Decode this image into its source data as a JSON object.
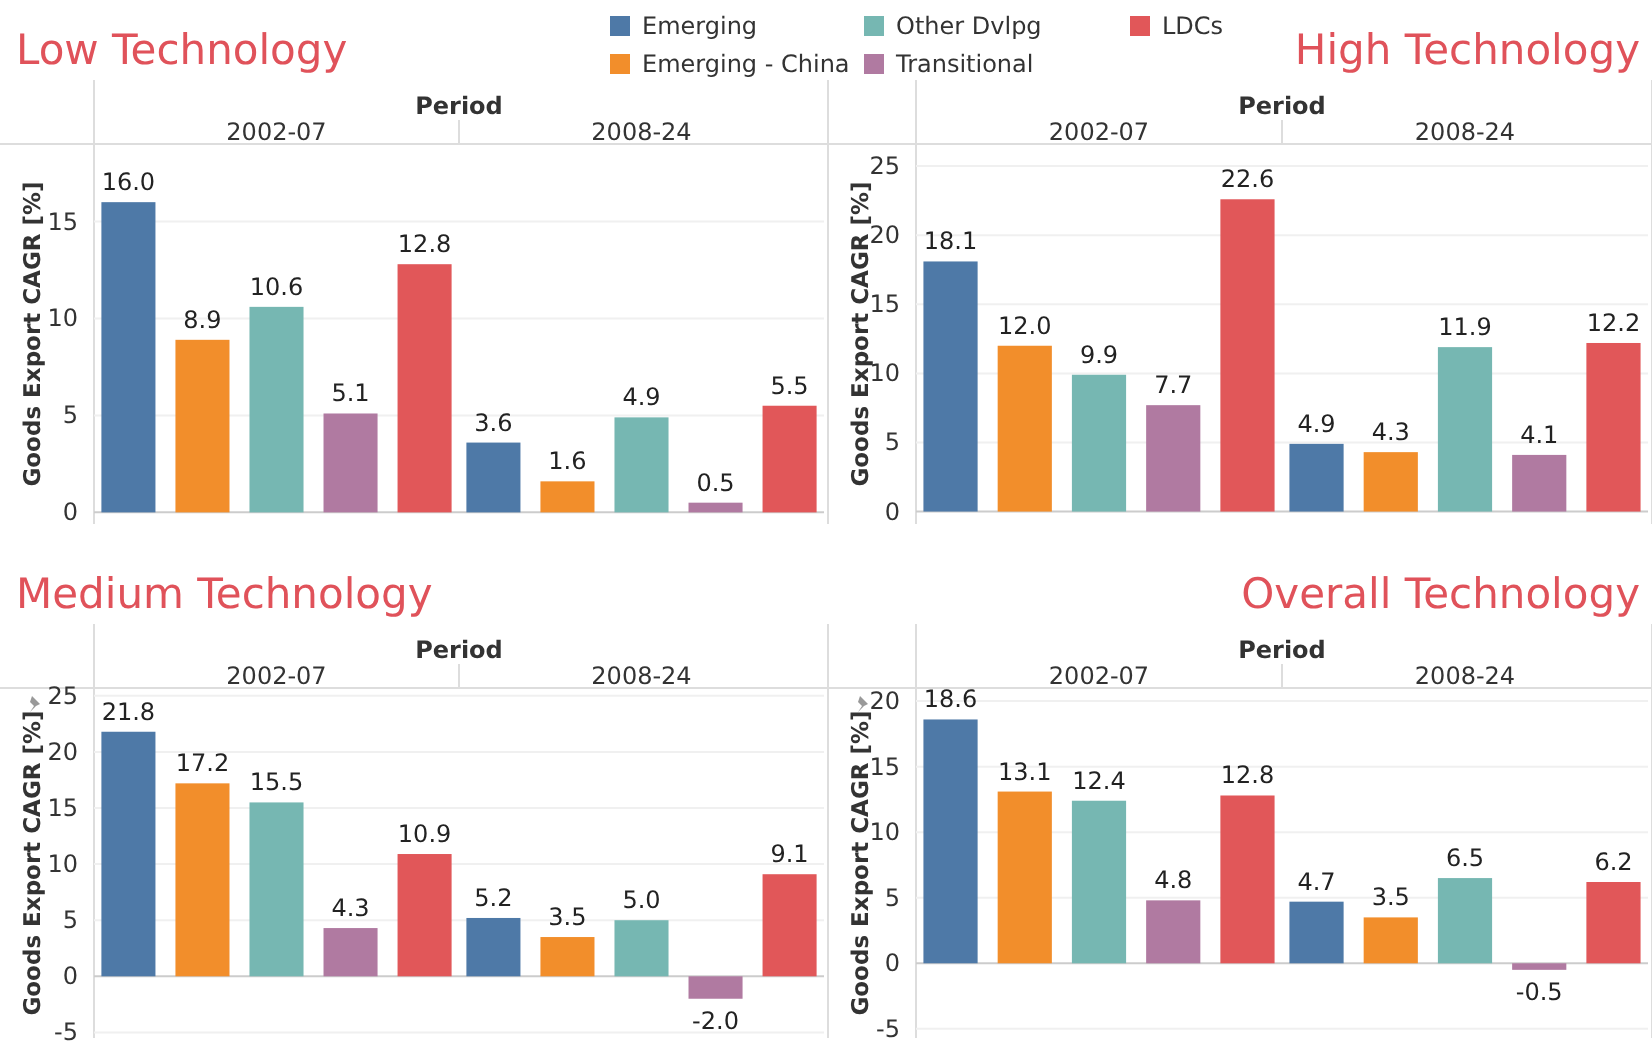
{
  "chart_data": [
    {
      "type": "bar",
      "title": "Low Technology",
      "xlabel": "Period",
      "ylabel": "Goods Export CAGR [%]",
      "categories": [
        "2002-07",
        "2008-24"
      ],
      "ylim": [
        -0.6,
        19
      ],
      "yticks": [
        0,
        5,
        10,
        15
      ],
      "grid": "y",
      "legend": "top",
      "series": [
        {
          "name": "Emerging",
          "color": "#4e79a7",
          "values": [
            16.0,
            3.6
          ],
          "value_labels": [
            "16.0",
            "3.6"
          ]
        },
        {
          "name": "Emerging - China",
          "color": "#f28e2b",
          "values": [
            8.9,
            1.6
          ],
          "value_labels": [
            "8.9",
            "1.6"
          ]
        },
        {
          "name": "Other Dvlpg",
          "color": "#76b7b2",
          "values": [
            10.6,
            4.9
          ],
          "value_labels": [
            "10.6",
            "4.9"
          ]
        },
        {
          "name": "Transitional",
          "color": "#b07aa1",
          "values": [
            5.1,
            0.5
          ],
          "value_labels": [
            "5.1",
            "0.5"
          ]
        },
        {
          "name": "LDCs",
          "color": "#e15759",
          "values": [
            12.8,
            5.5
          ],
          "value_labels": [
            "12.8",
            "5.5"
          ]
        }
      ]
    },
    {
      "type": "bar",
      "title": "High Technology",
      "xlabel": "Period",
      "ylabel": "Goods Export CAGR [%]",
      "categories": [
        "2002-07",
        "2008-24"
      ],
      "ylim": [
        -0.9,
        26.6
      ],
      "yticks": [
        0,
        5,
        10,
        15,
        20,
        25
      ],
      "grid": "y",
      "legend": false,
      "series": [
        {
          "color": "#4e79a7",
          "values": [
            18.1,
            4.9
          ],
          "value_labels": [
            "18.1",
            "4.9"
          ]
        },
        {
          "color": "#f28e2b",
          "values": [
            12.0,
            4.3
          ],
          "value_labels": [
            "12.0",
            "4.3"
          ]
        },
        {
          "color": "#76b7b2",
          "values": [
            9.9,
            11.9
          ],
          "value_labels": [
            "9.9",
            "11.9"
          ]
        },
        {
          "color": "#b07aa1",
          "values": [
            7.7,
            4.1
          ],
          "value_labels": [
            "7.7",
            "4.1"
          ]
        },
        {
          "color": "#e15759",
          "values": [
            22.6,
            12.2
          ],
          "value_labels": [
            "22.6",
            "12.2"
          ]
        }
      ]
    },
    {
      "type": "bar",
      "title": "Medium Technology",
      "xlabel": "Period",
      "ylabel": "Goods Export CAGR [%]",
      "categories": [
        "2002-07",
        "2008-24"
      ],
      "ylim": [
        -5.5,
        25.7
      ],
      "yticks": [
        -5,
        0,
        5,
        10,
        15,
        20,
        25
      ],
      "grid": "y",
      "legend": false,
      "series": [
        {
          "color": "#4e79a7",
          "values": [
            21.8,
            5.2
          ],
          "value_labels": [
            "21.8",
            "5.2"
          ]
        },
        {
          "color": "#f28e2b",
          "values": [
            17.2,
            3.5
          ],
          "value_labels": [
            "17.2",
            "3.5"
          ]
        },
        {
          "color": "#76b7b2",
          "values": [
            15.5,
            5.0
          ],
          "value_labels": [
            "15.5",
            "5.0"
          ]
        },
        {
          "color": "#b07aa1",
          "values": [
            4.3,
            -2.0
          ],
          "value_labels": [
            "4.3",
            "-2.0"
          ]
        },
        {
          "color": "#e15759",
          "values": [
            10.9,
            9.1
          ],
          "value_labels": [
            "10.9",
            "9.1"
          ]
        }
      ]
    },
    {
      "type": "bar",
      "title": "Overall Technology",
      "xlabel": "Period",
      "ylabel": "Goods Export CAGR [%]",
      "categories": [
        "2002-07",
        "2008-24"
      ],
      "ylim": [
        -5.7,
        21
      ],
      "yticks": [
        -5,
        0,
        5,
        10,
        15,
        20
      ],
      "grid": "y",
      "legend": false,
      "series": [
        {
          "color": "#4e79a7",
          "values": [
            18.6,
            4.7
          ],
          "value_labels": [
            "18.6",
            "4.7"
          ]
        },
        {
          "color": "#f28e2b",
          "values": [
            13.1,
            3.5
          ],
          "value_labels": [
            "13.1",
            "3.5"
          ]
        },
        {
          "color": "#76b7b2",
          "values": [
            12.4,
            6.5
          ],
          "value_labels": [
            "12.4",
            "6.5"
          ]
        },
        {
          "color": "#b07aa1",
          "values": [
            4.8,
            -0.5
          ],
          "value_labels": [
            "4.8",
            "-0.5"
          ]
        },
        {
          "color": "#e15759",
          "values": [
            12.8,
            6.2
          ],
          "value_labels": [
            "12.8",
            "6.2"
          ]
        }
      ]
    }
  ]
}
